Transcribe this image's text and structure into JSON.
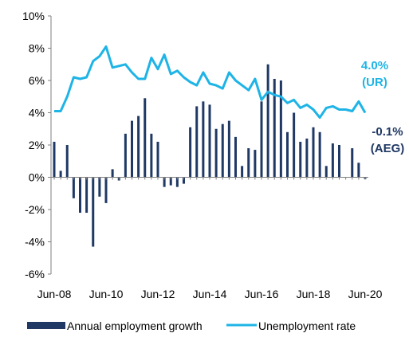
{
  "colors": {
    "bar": "#1F3864",
    "line": "#1EB4E6",
    "axis": "#7f7f7f"
  },
  "chart_data": {
    "type": "bar",
    "ylim": [
      -6,
      10
    ],
    "y_ticks": [
      "10%",
      "8%",
      "6%",
      "4%",
      "2%",
      "0%",
      "-2%",
      "-4%",
      "-6%"
    ],
    "x_ticks": [
      "Jun-08",
      "Jun-10",
      "Jun-12",
      "Jun-14",
      "Jun-16",
      "Jun-18",
      "Jun-20"
    ],
    "x_tick_months": [
      0,
      24,
      48,
      72,
      96,
      120,
      144
    ],
    "legend_position": "bottom",
    "series": [
      {
        "name": "Annual employment growth",
        "type": "bar",
        "months": [
          0,
          3,
          6,
          9,
          12,
          15,
          18,
          21,
          24,
          27,
          30,
          33,
          36,
          39,
          42,
          45,
          48,
          51,
          54,
          57,
          60,
          63,
          66,
          69,
          72,
          75,
          78,
          81,
          84,
          87,
          90,
          93,
          96,
          99,
          102,
          105,
          108,
          111,
          114,
          117,
          120,
          123,
          126,
          129,
          132,
          135,
          138,
          141,
          144
        ],
        "values": [
          2.2,
          0.4,
          2.0,
          -1.3,
          -2.2,
          -2.2,
          -4.3,
          -1.2,
          -1.6,
          0.5,
          -0.2,
          2.7,
          3.5,
          3.8,
          4.9,
          2.7,
          2.2,
          -0.6,
          -0.5,
          -0.6,
          -0.4,
          3.1,
          4.4,
          4.7,
          4.5,
          3.0,
          3.3,
          3.5,
          2.5,
          0.7,
          1.8,
          1.7,
          4.7,
          7.0,
          6.1,
          6.0,
          2.8,
          4.0,
          2.2,
          2.4,
          3.1,
          2.8,
          0.7,
          2.1,
          2.0,
          0.0,
          1.8,
          0.9,
          -0.1
        ]
      },
      {
        "name": "Unemployment rate",
        "type": "line",
        "months": [
          0,
          3,
          6,
          9,
          12,
          15,
          18,
          21,
          24,
          27,
          30,
          33,
          36,
          39,
          42,
          45,
          48,
          51,
          54,
          57,
          60,
          63,
          66,
          69,
          72,
          75,
          78,
          81,
          84,
          87,
          90,
          93,
          96,
          99,
          102,
          105,
          108,
          111,
          114,
          117,
          120,
          123,
          126,
          129,
          132,
          135,
          138,
          141,
          144
        ],
        "values": [
          4.1,
          4.1,
          5.0,
          6.2,
          6.1,
          6.2,
          7.2,
          7.5,
          8.1,
          6.8,
          6.9,
          7.0,
          6.5,
          6.1,
          6.1,
          7.4,
          6.7,
          7.6,
          6.4,
          6.6,
          6.2,
          5.9,
          5.7,
          6.5,
          5.8,
          5.7,
          5.5,
          6.5,
          6.0,
          5.7,
          5.4,
          6.1,
          4.8,
          5.3,
          5.1,
          5.0,
          4.6,
          4.8,
          4.3,
          4.5,
          4.2,
          3.7,
          4.3,
          4.4,
          4.2,
          4.2,
          4.1,
          4.7,
          4.0
        ]
      }
    ]
  },
  "annotations": {
    "ur_value": "4.0%",
    "ur_label": "(UR)",
    "aeg_value": "-0.1%",
    "aeg_label": "(AEG)"
  }
}
